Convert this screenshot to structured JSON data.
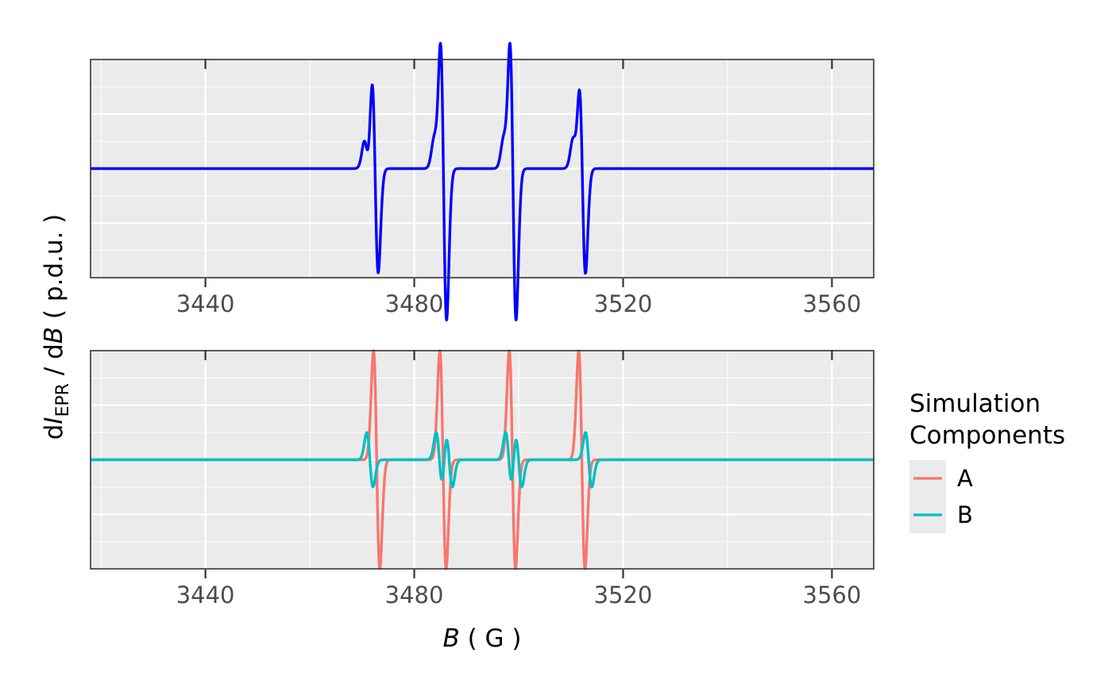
{
  "chart_data": [
    {
      "type": "line",
      "panel": "top",
      "title": "",
      "xlim": [
        3418,
        3568
      ],
      "ylim": [
        -1.05,
        1.05
      ],
      "x_ticks": [
        3440,
        3480,
        3520,
        3560
      ],
      "y_ticks_shown": false,
      "grid": true,
      "color": "#0000FF",
      "series": [
        {
          "lines": [
            {
              "center": 3472.5,
              "amplitude": 1.0,
              "width": 0.6
            },
            {
              "center": 3485.6,
              "amplitude": 1.45,
              "width": 0.6
            },
            {
              "center": 3498.9,
              "amplitude": 1.45,
              "width": 0.6
            },
            {
              "center": 3512.2,
              "amplitude": 1.0,
              "width": 0.6
            },
            {
              "center": 3471.0,
              "amplitude": 0.25,
              "width": 0.6
            },
            {
              "center": 3484.3,
              "amplitude": 0.25,
              "width": 0.6
            },
            {
              "center": 3497.6,
              "amplitude": 0.25,
              "width": 0.6
            },
            {
              "center": 3510.9,
              "amplitude": 0.25,
              "width": 0.6
            }
          ]
        }
      ]
    },
    {
      "type": "line",
      "panel": "bottom",
      "title": "",
      "xlim": [
        3418,
        3568
      ],
      "ylim": [
        -1.0,
        1.0
      ],
      "x_ticks": [
        3440,
        3480,
        3520,
        3560
      ],
      "y_ticks_shown": false,
      "grid": true,
      "series": [
        {
          "name": "A",
          "color": "#F8766D",
          "lines": [
            {
              "center": 3472.8,
              "amplitude": 1.0,
              "width": 0.6
            },
            {
              "center": 3485.5,
              "amplitude": 1.0,
              "width": 0.6
            },
            {
              "center": 3498.8,
              "amplitude": 1.0,
              "width": 0.6
            },
            {
              "center": 3512.1,
              "amplitude": 1.0,
              "width": 0.6
            }
          ]
        },
        {
          "name": "B",
          "color": "#00BFC4",
          "lines": [
            {
              "center": 3471.5,
              "amplitude": 0.25,
              "width": 0.6
            },
            {
              "center": 3484.8,
              "amplitude": 0.25,
              "width": 0.6
            },
            {
              "center": 3486.7,
              "amplitude": 0.25,
              "width": 0.6
            },
            {
              "center": 3498.1,
              "amplitude": 0.25,
              "width": 0.6
            },
            {
              "center": 3500.0,
              "amplitude": 0.25,
              "width": 0.6
            },
            {
              "center": 3513.4,
              "amplitude": 0.25,
              "width": 0.6
            }
          ]
        }
      ]
    }
  ],
  "axes": {
    "y_title": {
      "d1": "d",
      "I": "I",
      "sub": "EPR",
      "mid": " / d",
      "B": "B",
      "unit": "  ( p.d.u. )"
    },
    "x_title": {
      "B": "B",
      "unit": " ( G )"
    }
  },
  "legend": {
    "title_line1": "Simulation",
    "title_line2": "Components",
    "placement": "right"
  },
  "colors": {
    "panel_bg": "#EBEBEB",
    "grid_major": "#FFFFFF",
    "border": "#333333",
    "top_line": "#0000FF",
    "series_A": "#F8766D",
    "series_B": "#00BFC4"
  }
}
